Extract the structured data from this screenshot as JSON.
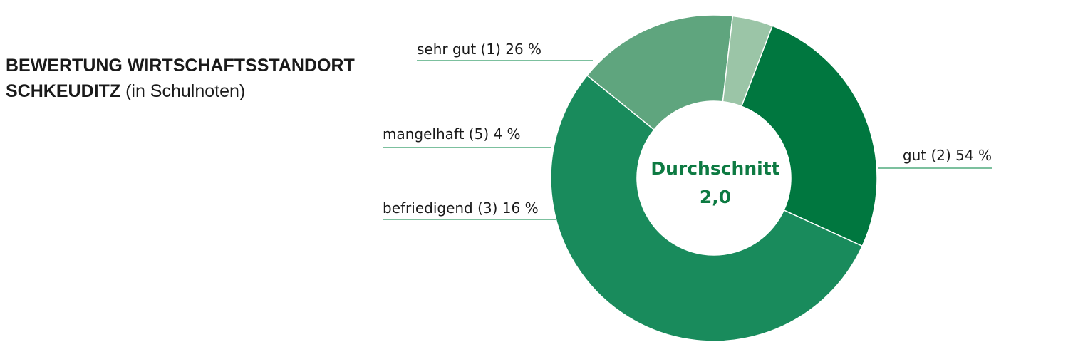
{
  "title": {
    "line1": "BEWERTUNG WIRTSCHAFTSSTANDORT",
    "line2_strong": "SCHKEUDITZ",
    "line2_sub": "(in Schulnoten)"
  },
  "center": {
    "label": "Durchschnitt",
    "value": "2,0"
  },
  "chart_data": {
    "type": "pie",
    "title": "BEWERTUNG WIRTSCHAFTSSTANDORT SCHKEUDITZ (in Schulnoten)",
    "donut": true,
    "categories": [
      "sehr gut (1)",
      "gut (2)",
      "befriedigend (3)",
      "mangelhaft (5)"
    ],
    "values": [
      26,
      54,
      16,
      4
    ],
    "labels": [
      "sehr gut (1) 26 %",
      "gut (2) 54 %",
      "befriedigend (3) 16 %",
      "mangelhaft (5) 4 %"
    ],
    "colors": [
      "#00773f",
      "#198b5c",
      "#5fa57e",
      "#9bc5a7"
    ],
    "leader_color": "#2e9a63",
    "center_label": "Durchschnitt",
    "center_value": "2,0"
  }
}
